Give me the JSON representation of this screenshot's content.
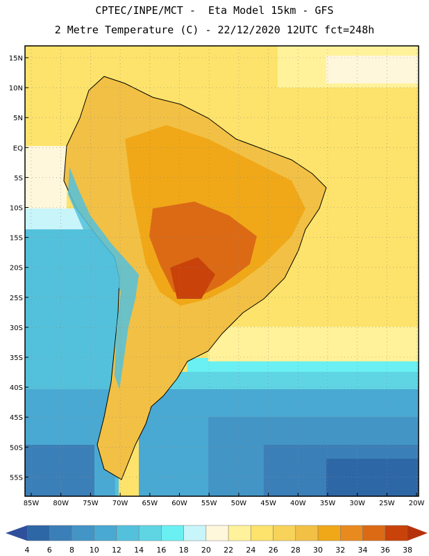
{
  "header": {
    "line1": "CPTEC/INPE/MCT -  Eta Model 15km - GFS",
    "line2": "2 Metre Temperature (C) - 22/12/2020 12UTC fct=248h"
  },
  "map": {
    "lat_labels": [
      "15N",
      "10N",
      "5N",
      "EQ",
      "5S",
      "10S",
      "15S",
      "20S",
      "25S",
      "30S",
      "35S",
      "40S",
      "45S",
      "50S",
      "55S"
    ],
    "lon_labels": [
      "85W",
      "80W",
      "75W",
      "70W",
      "65W",
      "60W",
      "55W",
      "50W",
      "45W",
      "40W",
      "35W",
      "30W",
      "25W",
      "20W"
    ]
  },
  "colorbar": {
    "labels": [
      "4",
      "6",
      "8",
      "10",
      "12",
      "14",
      "16",
      "18",
      "20",
      "22",
      "24",
      "26",
      "28",
      "30",
      "32",
      "34",
      "36",
      "38"
    ],
    "colors": [
      "#2e67a6",
      "#3b7fb8",
      "#4395c6",
      "#4aa9d2",
      "#54c1dc",
      "#5fd5e4",
      "#6af0f2",
      "#c8f5fa",
      "#fff7dc",
      "#fff29a",
      "#fde36b",
      "#f8d35a",
      "#f2c044",
      "#f0a818",
      "#e88a1e",
      "#dc6a14",
      "#c8420a"
    ],
    "low_arrow_color": "#2e4f9b",
    "high_arrow_color": "#b5320c"
  }
}
